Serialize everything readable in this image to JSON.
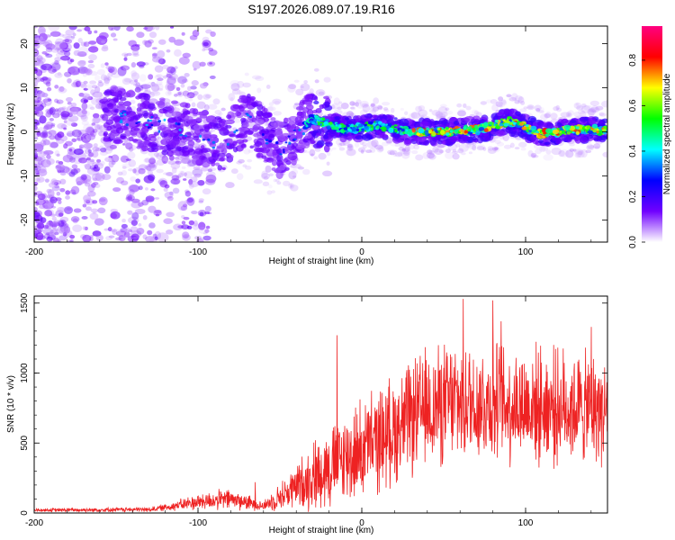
{
  "title": "S197.2026.089.07.19.R16",
  "chart_data": [
    {
      "type": "heatmap",
      "xlabel": "Height of straight line (km)",
      "ylabel": "Frequency (Hz)",
      "xlim": [
        -200,
        150
      ],
      "ylim": [
        -25,
        24
      ],
      "x_ticks": [
        "-200",
        "-100",
        "0",
        "100"
      ],
      "y_ticks": [
        "20",
        "10",
        "0",
        "-10",
        "-20"
      ],
      "colorbar": {
        "label": "Normalized spectral amplitude",
        "range": [
          0,
          0.95
        ],
        "ticks": [
          "0.0",
          "0.2",
          "0.4",
          "0.6",
          "0.8"
        ],
        "colors": [
          "#ffffff",
          "#7000ff",
          "#0000ff",
          "#00ffff",
          "#00ff00",
          "#ffff00",
          "#ff0000",
          "#ff0080"
        ]
      },
      "ridge": [
        {
          "x": -155,
          "y": 4
        },
        {
          "x": -130,
          "y": 2
        },
        {
          "x": -110,
          "y": 0.5
        },
        {
          "x": -85,
          "y": -3
        },
        {
          "x": -70,
          "y": 3
        },
        {
          "x": -50,
          "y": -4
        },
        {
          "x": -30,
          "y": 3
        },
        {
          "x": -10,
          "y": 0.5
        },
        {
          "x": 10,
          "y": 1.5
        },
        {
          "x": 30,
          "y": 0
        },
        {
          "x": 50,
          "y": 0
        },
        {
          "x": 70,
          "y": 0.5
        },
        {
          "x": 90,
          "y": 2.5
        },
        {
          "x": 110,
          "y": -0.5
        },
        {
          "x": 130,
          "y": 0.5
        },
        {
          "x": 150,
          "y": 0.5
        }
      ]
    },
    {
      "type": "line",
      "xlabel": "Height of straight line (km)",
      "ylabel": "SNR (10 * v/v)",
      "xlim": [
        -200,
        150
      ],
      "ylim": [
        0,
        1550
      ],
      "x_ticks": [
        "-200",
        "-100",
        "0",
        "100"
      ],
      "y_ticks": [
        "1500",
        "1000",
        "500",
        "0"
      ],
      "color": "#ee2222",
      "envelope": [
        {
          "x": -200,
          "mean": 20,
          "amp": 15
        },
        {
          "x": -130,
          "mean": 25,
          "amp": 20
        },
        {
          "x": -120,
          "mean": 40,
          "amp": 30
        },
        {
          "x": -100,
          "mean": 80,
          "amp": 70
        },
        {
          "x": -80,
          "mean": 100,
          "amp": 90
        },
        {
          "x": -60,
          "mean": 50,
          "amp": 40
        },
        {
          "x": -45,
          "mean": 150,
          "amp": 150
        },
        {
          "x": -25,
          "mean": 300,
          "amp": 330
        },
        {
          "x": 0,
          "mean": 450,
          "amp": 420
        },
        {
          "x": 20,
          "mean": 600,
          "amp": 450
        },
        {
          "x": 40,
          "mean": 750,
          "amp": 500
        },
        {
          "x": 60,
          "mean": 800,
          "amp": 520
        },
        {
          "x": 90,
          "mean": 780,
          "amp": 500
        },
        {
          "x": 120,
          "mean": 760,
          "amp": 480
        },
        {
          "x": 150,
          "mean": 740,
          "amp": 450
        }
      ],
      "peaks": [
        {
          "x": -65,
          "y": 220
        },
        {
          "x": -15,
          "y": 1270
        },
        {
          "x": 62,
          "y": 1530
        },
        {
          "x": 80,
          "y": 1520
        },
        {
          "x": 85,
          "y": 1370
        },
        {
          "x": 140,
          "y": 1330
        }
      ]
    }
  ]
}
